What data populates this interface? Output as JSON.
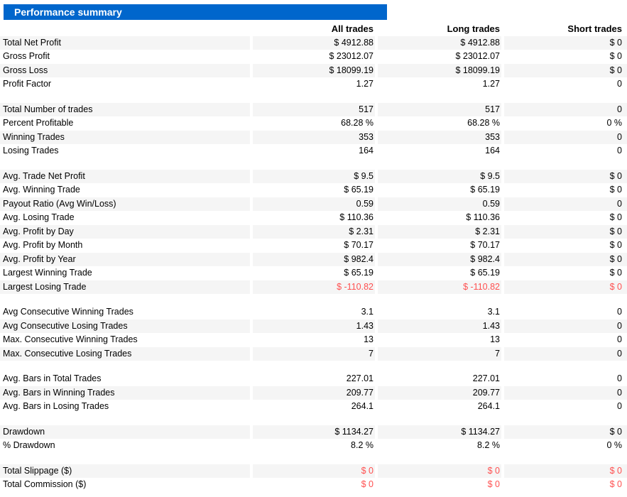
{
  "colors": {
    "header_bg": "#0066cc",
    "header_text": "#ffffff",
    "stripe": "#f5f5f5",
    "negative": "#ff5050",
    "text": "#000000"
  },
  "chart_data": {
    "type": "table",
    "title": "Performance summary",
    "columns": [
      "",
      "All trades",
      "Long trades",
      "Short trades"
    ],
    "groups": [
      {
        "rows": [
          {
            "label": "Total Net Profit",
            "values": [
              "$ 4912.88",
              "$ 4912.88",
              "$ 0"
            ],
            "negative": false
          },
          {
            "label": "Gross Profit",
            "values": [
              "$ 23012.07",
              "$ 23012.07",
              "$ 0"
            ],
            "negative": false
          },
          {
            "label": "Gross Loss",
            "values": [
              "$ 18099.19",
              "$ 18099.19",
              "$ 0"
            ],
            "negative": false
          },
          {
            "label": "Profit Factor",
            "values": [
              "1.27",
              "1.27",
              "0"
            ],
            "negative": false
          }
        ]
      },
      {
        "rows": [
          {
            "label": "Total Number of trades",
            "values": [
              "517",
              "517",
              "0"
            ],
            "negative": false
          },
          {
            "label": "Percent Profitable",
            "values": [
              "68.28 %",
              "68.28 %",
              "0 %"
            ],
            "negative": false
          },
          {
            "label": "Winning Trades",
            "values": [
              "353",
              "353",
              "0"
            ],
            "negative": false
          },
          {
            "label": "Losing Trades",
            "values": [
              "164",
              "164",
              "0"
            ],
            "negative": false
          }
        ]
      },
      {
        "rows": [
          {
            "label": "Avg. Trade Net Profit",
            "values": [
              "$ 9.5",
              "$ 9.5",
              "$ 0"
            ],
            "negative": false
          },
          {
            "label": "Avg. Winning Trade",
            "values": [
              "$ 65.19",
              "$ 65.19",
              "$ 0"
            ],
            "negative": false
          },
          {
            "label": "Payout Ratio (Avg Win/Loss)",
            "values": [
              "0.59",
              "0.59",
              "0"
            ],
            "negative": false
          },
          {
            "label": "Avg. Losing Trade",
            "values": [
              "$ 110.36",
              "$ 110.36",
              "$ 0"
            ],
            "negative": false
          },
          {
            "label": "Avg. Profit by Day",
            "values": [
              "$ 2.31",
              "$ 2.31",
              "$ 0"
            ],
            "negative": false
          },
          {
            "label": "Avg. Profit by Month",
            "values": [
              "$ 70.17",
              "$ 70.17",
              "$ 0"
            ],
            "negative": false
          },
          {
            "label": "Avg. Profit by Year",
            "values": [
              "$ 982.4",
              "$ 982.4",
              "$ 0"
            ],
            "negative": false
          },
          {
            "label": "Largest Winning Trade",
            "values": [
              "$ 65.19",
              "$ 65.19",
              "$ 0"
            ],
            "negative": false
          },
          {
            "label": "Largest Losing Trade",
            "values": [
              "$ -110.82",
              "$ -110.82",
              "$ 0"
            ],
            "negative": true
          }
        ]
      },
      {
        "rows": [
          {
            "label": "Avg Consecutive Winning Trades",
            "values": [
              "3.1",
              "3.1",
              "0"
            ],
            "negative": false
          },
          {
            "label": "Avg Consecutive Losing Trades",
            "values": [
              "1.43",
              "1.43",
              "0"
            ],
            "negative": false
          },
          {
            "label": "Max. Consecutive Winning Trades",
            "values": [
              "13",
              "13",
              "0"
            ],
            "negative": false
          },
          {
            "label": "Max. Consecutive Losing Trades",
            "values": [
              "7",
              "7",
              "0"
            ],
            "negative": false
          }
        ]
      },
      {
        "rows": [
          {
            "label": "Avg. Bars in Total Trades",
            "values": [
              "227.01",
              "227.01",
              "0"
            ],
            "negative": false
          },
          {
            "label": "Avg. Bars in Winning Trades",
            "values": [
              "209.77",
              "209.77",
              "0"
            ],
            "negative": false
          },
          {
            "label": "Avg. Bars in Losing Trades",
            "values": [
              "264.1",
              "264.1",
              "0"
            ],
            "negative": false
          }
        ]
      },
      {
        "rows": [
          {
            "label": "Drawdown",
            "values": [
              "$ 1134.27",
              "$ 1134.27",
              "$ 0"
            ],
            "negative": false
          },
          {
            "label": "% Drawdown",
            "values": [
              "8.2 %",
              "8.2 %",
              "0 %"
            ],
            "negative": false
          }
        ]
      },
      {
        "rows": [
          {
            "label": "Total Slippage ($)",
            "values": [
              "$ 0",
              "$ 0",
              "$ 0"
            ],
            "negative": true
          },
          {
            "label": "Total Commission ($)",
            "values": [
              "$ 0",
              "$ 0",
              "$ 0"
            ],
            "negative": true
          }
        ]
      }
    ]
  }
}
